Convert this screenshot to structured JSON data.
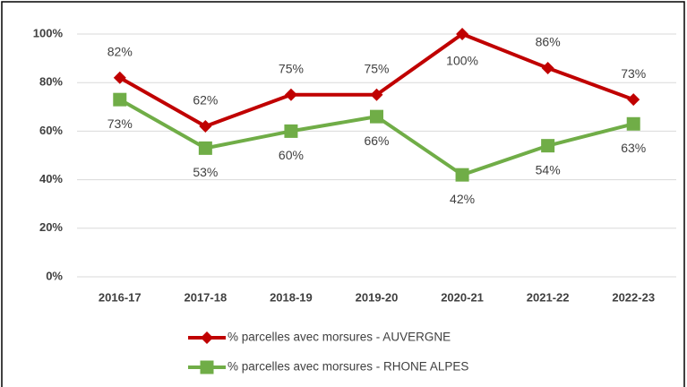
{
  "chart_data": {
    "type": "line",
    "categories": [
      "2016-17",
      "2017-18",
      "2018-19",
      "2019-20",
      "2020-21",
      "2021-22",
      "2022-23"
    ],
    "series": [
      {
        "name": "% parcelles avec morsures - AUVERGNE",
        "color": "#c00000",
        "marker": "diamond",
        "values": [
          82,
          62,
          75,
          75,
          100,
          86,
          73
        ],
        "value_labels": [
          "82%",
          "62%",
          "75%",
          "75%",
          "100%",
          "86%",
          "73%"
        ]
      },
      {
        "name": "% parcelles avec morsures - RHONE ALPES",
        "color": "#70ad47",
        "marker": "square",
        "values": [
          73,
          53,
          60,
          66,
          42,
          54,
          63
        ],
        "value_labels": [
          "73%",
          "53%",
          "60%",
          "66%",
          "42%",
          "54%",
          "63%"
        ]
      }
    ],
    "ylim": [
      0,
      100
    ],
    "yticks": [
      {
        "value": 0,
        "label": "0%"
      },
      {
        "value": 20,
        "label": "20%"
      },
      {
        "value": 40,
        "label": "40%"
      },
      {
        "value": 60,
        "label": "60%"
      },
      {
        "value": 80,
        "label": "80%"
      },
      {
        "value": 100,
        "label": "100%"
      }
    ],
    "grid": true
  }
}
